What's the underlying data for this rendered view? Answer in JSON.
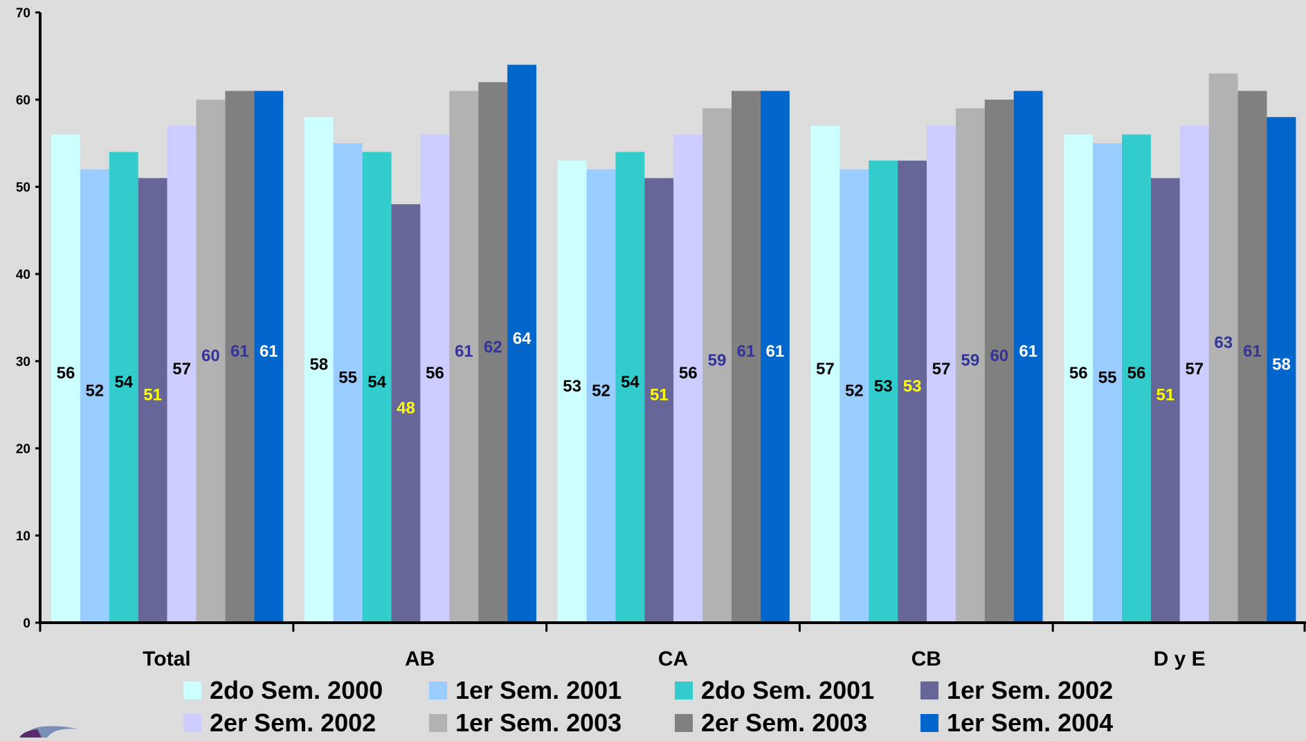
{
  "chart_data": {
    "type": "bar",
    "categories": [
      "Total",
      "AB",
      "CA",
      "CB",
      "D y E"
    ],
    "series": [
      {
        "name": "2do Sem. 2000",
        "color": "#ccffff",
        "label_color": "#000000",
        "values": [
          56,
          58,
          53,
          57,
          56
        ],
        "labels": [
          "56",
          "58",
          "53",
          "57",
          "56"
        ]
      },
      {
        "name": "1er Sem. 2001",
        "color": "#99ccff",
        "label_color": "#000000",
        "values": [
          52,
          55,
          52,
          52,
          55
        ],
        "labels": [
          "52",
          "55",
          "52",
          "52",
          "55"
        ]
      },
      {
        "name": "2do Sem. 2001",
        "color": "#33cccc",
        "label_color": "#000000",
        "values": [
          54,
          54,
          54,
          53,
          56
        ],
        "labels": [
          "54",
          "54",
          "54",
          "53",
          "56"
        ]
      },
      {
        "name": "1er Sem. 2002",
        "color": "#666699",
        "label_color": "#ffff00",
        "values": [
          51,
          48,
          51,
          53,
          51
        ],
        "labels": [
          "51",
          "48",
          "51",
          "53",
          "51"
        ]
      },
      {
        "name": "2er Sem. 2002",
        "color": "#ccccff",
        "label_color": "#000000",
        "values": [
          57,
          56,
          56,
          57,
          57
        ],
        "labels": [
          "57",
          "56",
          "56",
          "57",
          "57"
        ]
      },
      {
        "name": "1er Sem. 2003",
        "color": "#b2b2b2",
        "label_color": "#333399",
        "values": [
          60,
          61,
          59,
          59,
          63
        ],
        "labels": [
          "60",
          "61",
          "59",
          "59",
          "63"
        ]
      },
      {
        "name": "2er Sem. 2003",
        "color": "#808080",
        "label_color": "#333399",
        "values": [
          61,
          62,
          61,
          60,
          61
        ],
        "labels": [
          "61",
          "62",
          "61",
          "60",
          "61"
        ]
      },
      {
        "name": "1er Sem. 2004",
        "color": "#0066cc",
        "label_color": "#ffffff",
        "values": [
          61,
          64,
          61,
          61,
          58
        ],
        "labels": [
          "61",
          "64",
          "61",
          "61",
          "58"
        ]
      }
    ],
    "y_ticks": [
      "0",
      "10",
      "20",
      "30",
      "40",
      "50",
      "60",
      "70"
    ],
    "ylim": [
      0,
      70
    ],
    "grid": false,
    "legend_position": "bottom",
    "title": "",
    "xlabel": "",
    "ylabel": ""
  }
}
